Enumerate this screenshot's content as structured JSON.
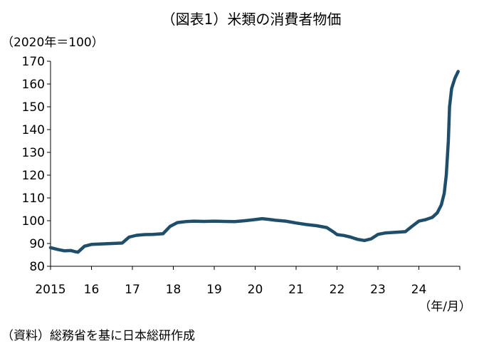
{
  "chart_data": {
    "type": "line",
    "title": "（図表1）米類の消費者物価",
    "ylabel": "（2020年＝100）",
    "xlabel": "（年/月）",
    "source": "（資料）総務省を基に日本総研作成",
    "ylim": [
      80,
      170
    ],
    "yticks": [
      "80",
      "90",
      "100",
      "110",
      "120",
      "130",
      "140",
      "150",
      "160",
      "170"
    ],
    "xlim": [
      2015,
      2025
    ],
    "xticks": [
      {
        "label": "2015",
        "value": 2015
      },
      {
        "label": "16",
        "value": 2016
      },
      {
        "label": "17",
        "value": 2017
      },
      {
        "label": "18",
        "value": 2018
      },
      {
        "label": "19",
        "value": 2019
      },
      {
        "label": "20",
        "value": 2020
      },
      {
        "label": "21",
        "value": 2021
      },
      {
        "label": "22",
        "value": 2022
      },
      {
        "label": "23",
        "value": 2023
      },
      {
        "label": "24",
        "value": 2024
      }
    ],
    "grid": false,
    "line_color": "#1f4e6b",
    "series": [
      {
        "points": [
          [
            2015.0,
            88.2
          ],
          [
            2015.17,
            87.4
          ],
          [
            2015.33,
            86.8
          ],
          [
            2015.5,
            86.9
          ],
          [
            2015.6,
            86.4
          ],
          [
            2015.67,
            86.2
          ],
          [
            2015.83,
            88.8
          ],
          [
            2016.0,
            89.6
          ],
          [
            2016.25,
            89.8
          ],
          [
            2016.5,
            90.0
          ],
          [
            2016.75,
            90.2
          ],
          [
            2016.92,
            92.8
          ],
          [
            2017.1,
            93.6
          ],
          [
            2017.3,
            93.9
          ],
          [
            2017.5,
            94.0
          ],
          [
            2017.75,
            94.3
          ],
          [
            2017.92,
            97.5
          ],
          [
            2018.1,
            99.2
          ],
          [
            2018.3,
            99.6
          ],
          [
            2018.5,
            99.8
          ],
          [
            2018.75,
            99.7
          ],
          [
            2019.0,
            99.8
          ],
          [
            2019.25,
            99.7
          ],
          [
            2019.5,
            99.6
          ],
          [
            2019.75,
            100.0
          ],
          [
            2020.0,
            100.5
          ],
          [
            2020.17,
            100.9
          ],
          [
            2020.33,
            100.6
          ],
          [
            2020.5,
            100.2
          ],
          [
            2020.75,
            99.8
          ],
          [
            2021.0,
            99.0
          ],
          [
            2021.25,
            98.3
          ],
          [
            2021.5,
            97.8
          ],
          [
            2021.75,
            97.0
          ],
          [
            2021.92,
            95.0
          ],
          [
            2022.0,
            93.9
          ],
          [
            2022.17,
            93.5
          ],
          [
            2022.33,
            92.8
          ],
          [
            2022.5,
            91.8
          ],
          [
            2022.67,
            91.3
          ],
          [
            2022.83,
            92.0
          ],
          [
            2023.0,
            94.0
          ],
          [
            2023.17,
            94.6
          ],
          [
            2023.33,
            94.8
          ],
          [
            2023.5,
            95.0
          ],
          [
            2023.67,
            95.2
          ],
          [
            2023.83,
            97.5
          ],
          [
            2024.0,
            99.8
          ],
          [
            2024.17,
            100.5
          ],
          [
            2024.33,
            101.5
          ],
          [
            2024.45,
            103.5
          ],
          [
            2024.55,
            107.0
          ],
          [
            2024.62,
            112.0
          ],
          [
            2024.67,
            120.0
          ],
          [
            2024.72,
            135.0
          ],
          [
            2024.75,
            150.0
          ],
          [
            2024.8,
            158.0
          ],
          [
            2024.88,
            162.5
          ],
          [
            2024.96,
            165.5
          ]
        ]
      }
    ]
  }
}
